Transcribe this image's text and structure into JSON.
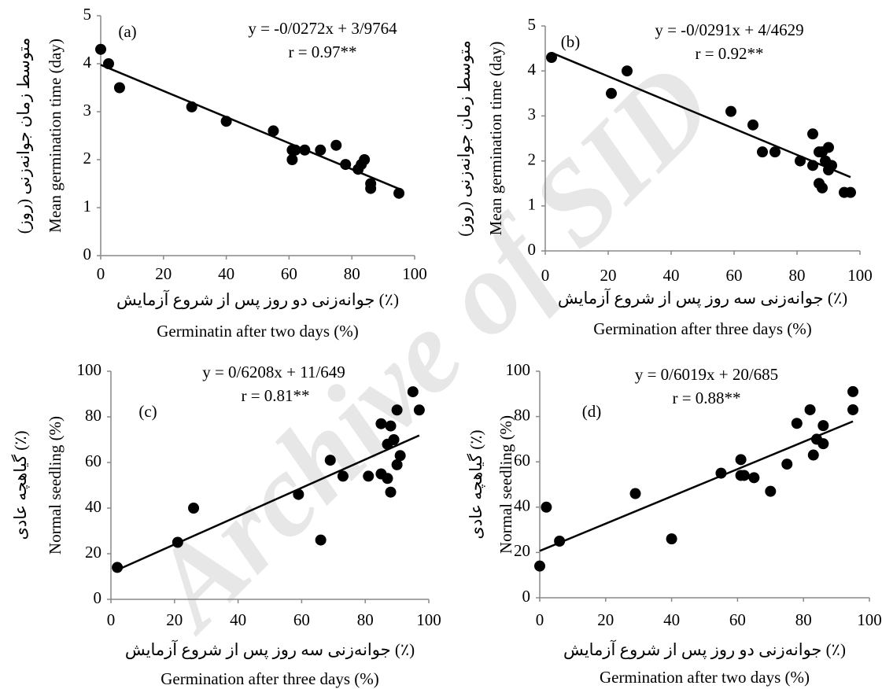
{
  "watermark": "Archive of SID",
  "chart_data": [
    {
      "type": "scatter",
      "panel_label": "(a)",
      "equation": "y = -0/0272x + 3/9764",
      "r_text": "r = 0.97**",
      "y_label": "Mean germination time (day)",
      "y_label_fa": "متوسط زمان جوانه‌زنی (روز)",
      "x_label_fa": "جوانه‌زنی دو روز پس از شروع آزمایش (٪)",
      "x_label": "Germinatin after two days (%)",
      "x": [
        0,
        2.5,
        6,
        29,
        40,
        55,
        61,
        61,
        62,
        65,
        70,
        75,
        78,
        82,
        83,
        84,
        86,
        86,
        95
      ],
      "y": [
        4.3,
        4.0,
        3.5,
        3.1,
        2.8,
        2.6,
        2.2,
        2.0,
        2.2,
        2.2,
        2.2,
        2.3,
        1.9,
        1.8,
        1.9,
        2.0,
        1.5,
        1.4,
        1.3
      ],
      "color": "#000000",
      "fit": {
        "slope": -0.0272,
        "intercept": 3.9764
      },
      "xlim": [
        0,
        100
      ],
      "ylim": [
        0,
        5
      ],
      "xticks": [
        0,
        20,
        40,
        60,
        80,
        100
      ],
      "yticks": [
        0,
        1,
        2,
        3,
        4,
        5
      ]
    },
    {
      "type": "scatter",
      "panel_label": "(b)",
      "equation": "y = -0/0291x + 4/4629",
      "r_text": "r = 0.92**",
      "y_label": "Mean germination time (day)",
      "y_label_fa": "متوسط زمان جوانه‌زنی (روز)",
      "x_label_fa": "جوانه‌زنی سه روز پس از شروع آزمایش (٪)",
      "x_label": "Germination after three days (%)",
      "x": [
        2,
        21,
        26,
        59,
        66,
        69,
        73,
        81,
        85,
        85,
        87,
        87,
        88,
        88,
        89,
        90,
        90,
        91,
        95,
        97
      ],
      "y": [
        4.3,
        3.5,
        4.0,
        3.1,
        2.8,
        2.2,
        2.2,
        2.0,
        2.6,
        1.9,
        2.2,
        1.5,
        1.4,
        2.2,
        2.0,
        2.3,
        1.8,
        1.9,
        1.3,
        1.3
      ],
      "color": "#000000",
      "fit": {
        "slope": -0.0291,
        "intercept": 4.4629
      },
      "xlim": [
        0,
        100
      ],
      "ylim": [
        0,
        5
      ],
      "xticks": [
        0,
        20,
        40,
        60,
        80,
        100
      ],
      "yticks": [
        0,
        1,
        2,
        3,
        4,
        5
      ]
    },
    {
      "type": "scatter",
      "panel_label": "(c)",
      "equation": "y = 0/6208x + 11/649",
      "r_text": "r = 0.81**",
      "y_label": "Normal seedling (%)",
      "y_label_fa": "گیاهچه عادی (٪)",
      "x_label_fa": "جوانه‌زنی سه روز پس از شروع آزمایش (٪)",
      "x_label": "Germination after three days (%)",
      "x": [
        2,
        21,
        26,
        59,
        66,
        69,
        73,
        81,
        85,
        85,
        87,
        87,
        88,
        88,
        89,
        90,
        90,
        91,
        95,
        97
      ],
      "y": [
        14,
        25,
        40,
        46,
        26,
        61,
        54,
        54,
        77,
        55,
        53,
        68,
        76,
        47,
        70,
        59,
        83,
        63,
        91,
        83
      ],
      "color": "#000000",
      "fit": {
        "slope": 0.6208,
        "intercept": 11.649
      },
      "xlim": [
        0,
        100
      ],
      "ylim": [
        0,
        100
      ],
      "xticks": [
        0,
        20,
        40,
        60,
        80,
        100
      ],
      "yticks": [
        0,
        20,
        40,
        60,
        80,
        100
      ]
    },
    {
      "type": "scatter",
      "panel_label": "(d)",
      "equation": "y = 0/6019x + 20/685",
      "r_text": "r = 0.88**",
      "y_label": "Normal seedling (%)",
      "y_label_fa": "گیاهچه عادی (٪)",
      "x_label_fa": "جوانه‌زنی دو روز پس از شروع آزمایش (٪)",
      "x_label": "Germination after two days (%)",
      "x": [
        0,
        2,
        6,
        29,
        40,
        55,
        61,
        61,
        62,
        65,
        70,
        75,
        78,
        82,
        83,
        84,
        86,
        86,
        95,
        95
      ],
      "y": [
        14,
        40,
        25,
        46,
        26,
        55,
        61,
        54,
        54,
        53,
        47,
        59,
        77,
        83,
        63,
        70,
        68,
        76,
        91,
        83
      ],
      "color": "#000000",
      "fit": {
        "slope": 0.6019,
        "intercept": 20.685
      },
      "xlim": [
        0,
        100
      ],
      "ylim": [
        0,
        100
      ],
      "xticks": [
        0,
        20,
        40,
        60,
        80,
        100
      ],
      "yticks": [
        0,
        20,
        40,
        60,
        80,
        100
      ]
    }
  ]
}
